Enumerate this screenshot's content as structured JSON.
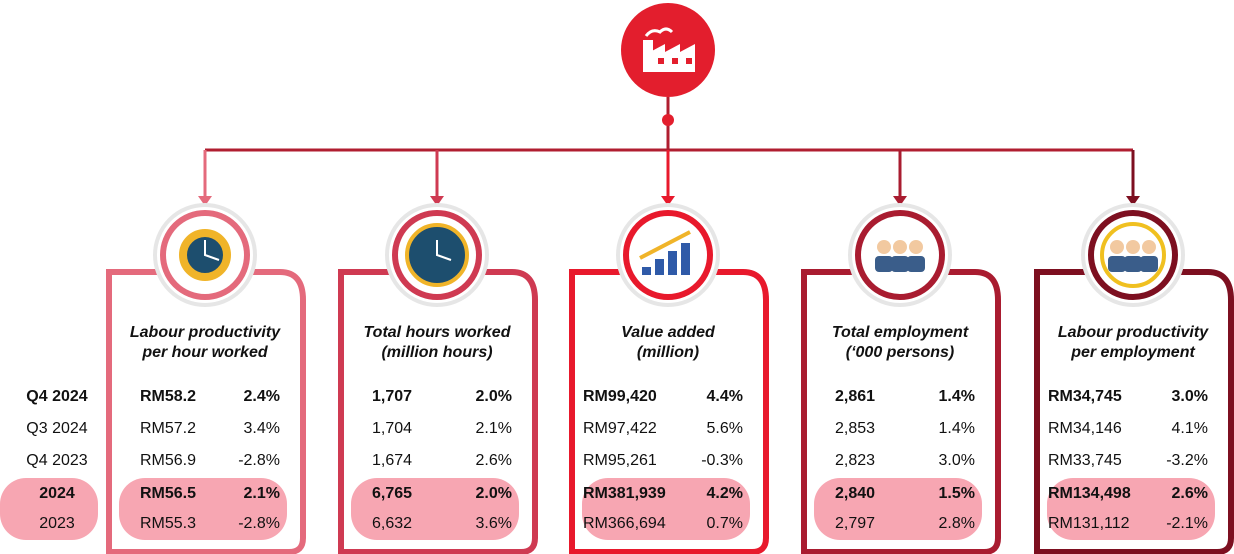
{
  "row_labels": [
    "Q4 2024",
    "Q3 2024",
    "Q4 2023",
    "2024",
    "2023"
  ],
  "cards": [
    {
      "title": [
        "Labour productivity",
        "per hour worked"
      ],
      "color": "#e46a7c",
      "rows": [
        [
          "RM58.2",
          "2.4%"
        ],
        [
          "RM57.2",
          "3.4%"
        ],
        [
          "RM56.9",
          "-2.8%"
        ],
        [
          "RM56.5",
          "2.1%"
        ],
        [
          "RM55.3",
          "-2.8%"
        ]
      ]
    },
    {
      "title": [
        "Total hours worked",
        "(million hours)"
      ],
      "color": "#cf3a52",
      "rows": [
        [
          "1,707",
          "2.0%"
        ],
        [
          "1,704",
          "2.1%"
        ],
        [
          "1,674",
          "2.6%"
        ],
        [
          "6,765",
          "2.0%"
        ],
        [
          "6,632",
          "3.6%"
        ]
      ]
    },
    {
      "title": [
        "Value added",
        "(million)"
      ],
      "color": "#e8192c",
      "rows": [
        [
          "RM99,420",
          "4.4%"
        ],
        [
          "RM97,422",
          "5.6%"
        ],
        [
          "RM95,261",
          "-0.3%"
        ],
        [
          "RM381,939",
          "4.2%"
        ],
        [
          "RM366,694",
          "0.7%"
        ]
      ]
    },
    {
      "title": [
        "Total employment",
        "(‘000 persons)"
      ],
      "color": "#a91c30",
      "rows": [
        [
          "2,861",
          "1.4%"
        ],
        [
          "2,853",
          "1.4%"
        ],
        [
          "2,823",
          "3.0%"
        ],
        [
          "2,840",
          "1.5%"
        ],
        [
          "2,797",
          "2.8%"
        ]
      ]
    },
    {
      "title": [
        "Labour productivity",
        "per employment"
      ],
      "color": "#7d0f20",
      "rows": [
        [
          "RM34,745",
          "3.0%"
        ],
        [
          "RM34,146",
          "4.1%"
        ],
        [
          "RM33,745",
          "-3.2%"
        ],
        [
          "RM134,498",
          "2.6%"
        ],
        [
          "RM131,112",
          "-2.1%"
        ]
      ]
    }
  ]
}
